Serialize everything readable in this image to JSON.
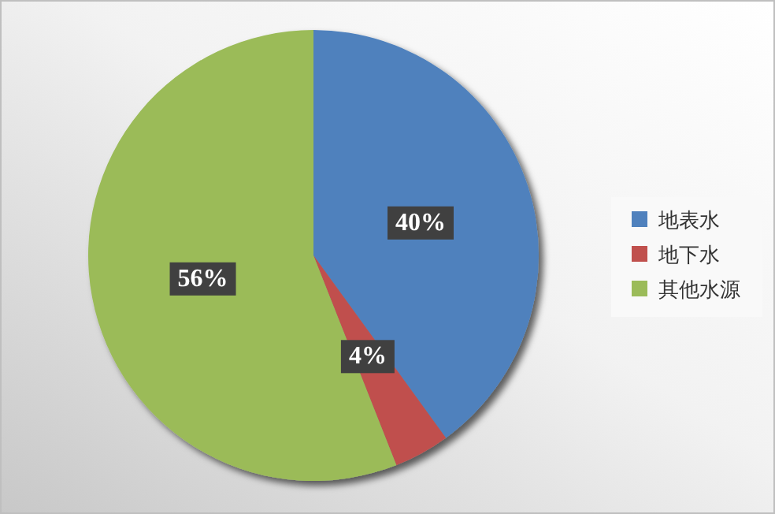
{
  "chart_data": {
    "type": "pie",
    "categories": [
      "地表水",
      "地下水",
      "其他水源"
    ],
    "values": [
      40,
      4,
      56
    ],
    "colors": [
      "#4f81bd",
      "#c0504d",
      "#9bbb59"
    ],
    "value_labels": [
      "40%",
      "4%",
      "56%"
    ],
    "legend": "right"
  }
}
